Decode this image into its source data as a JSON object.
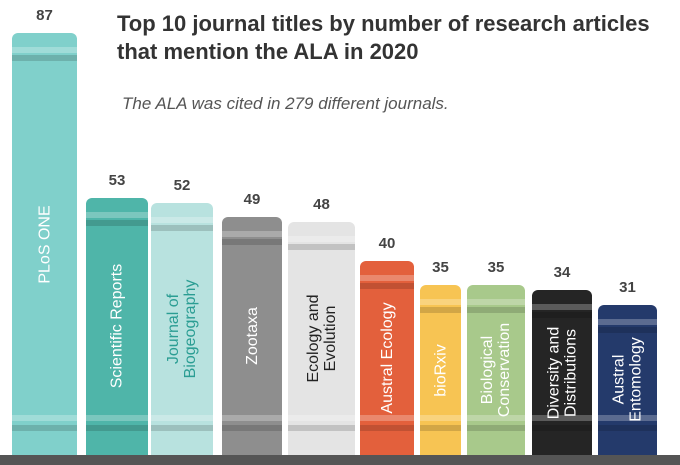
{
  "chart_data": {
    "type": "book-bar",
    "title": "Top 10 journal titles by number of research articles that mention the ALA in 2020",
    "subtitle": "The ALA was cited in 279 different journals.",
    "categories": [
      "PLoS ONE",
      "Scientific Reports",
      "Journal of\nBiogeography",
      "Zootaxa",
      "Ecology and\nEvolution",
      "Austral Ecology",
      "bioRxiv",
      "Biological\nConservation",
      "Diversity and\nDistributions",
      "Austral\nEntomology"
    ],
    "values": [
      87,
      53,
      52,
      49,
      48,
      40,
      35,
      35,
      34,
      31
    ],
    "colors": [
      "#80d0cb",
      "#4fb5a9",
      "#b8e2df",
      "#8e8e8e",
      "#e4e4e4",
      "#e3603c",
      "#f7c453",
      "#a8c98b",
      "#252525",
      "#243a6b"
    ],
    "text_colors": [
      "#ffffff",
      "#ffffff",
      "#2a9d93",
      "#ffffff",
      "#222222",
      "#ffffff",
      "#ffffff",
      "#ffffff",
      "#ffffff",
      "#ffffff"
    ]
  }
}
